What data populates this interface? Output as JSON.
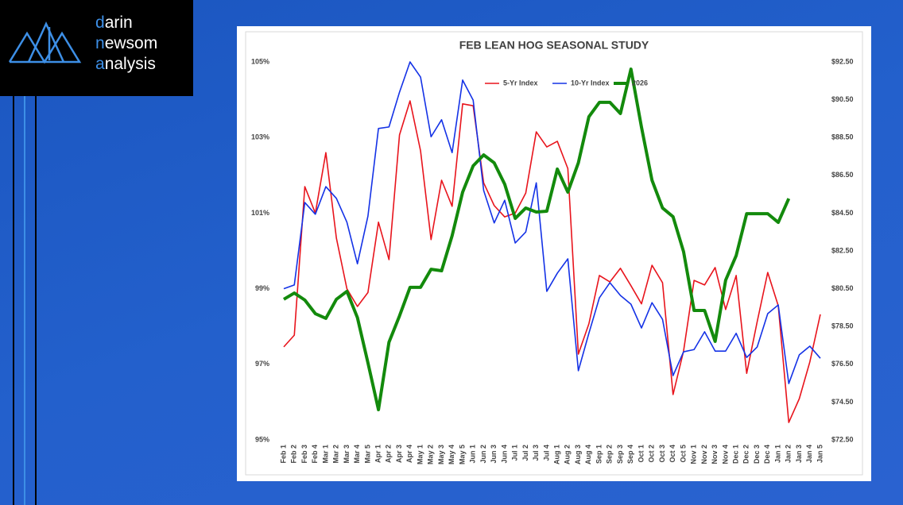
{
  "logo": [
    "darin",
    "newsom",
    "analysis"
  ],
  "chart_data": {
    "type": "line",
    "title": "FEB LEAN HOG SEASONAL STUDY",
    "categories": [
      "Feb 1",
      "Feb 2",
      "Feb 3",
      "Feb 4",
      "Mar 1",
      "Mar 2",
      "Mar 3",
      "Mar 4",
      "Mar 5",
      "Apr 1",
      "Apr 2",
      "Apr 3",
      "Apr 4",
      "May 1",
      "May 2",
      "May 3",
      "May 4",
      "May 5",
      "Jun 1",
      "Jun 2",
      "Jun 3",
      "Jun 4",
      "Jul 1",
      "Jul 2",
      "Jul 3",
      "Jul 4",
      "Aug 1",
      "Aug 2",
      "Aug 3",
      "Aug 4",
      "Sep 1",
      "Sep 2",
      "Sep 3",
      "Sep 4",
      "Oct 1",
      "Oct 2",
      "Oct 3",
      "Oct 4",
      "Oct 5",
      "Nov 1",
      "Nov 2",
      "Nov 3",
      "Nov 4",
      "Dec 1",
      "Dec 2",
      "Dec 3",
      "Dec 4",
      "Jan 1",
      "Jan 2",
      "Jan 3",
      "Jan 4",
      "Jan 5"
    ],
    "series": [
      {
        "name": "5-Yr Index",
        "color": "#e8141c",
        "width": 1.6,
        "values": [
          97.46,
          97.77,
          101.7,
          101.0,
          102.6,
          100.34,
          99.0,
          98.53,
          98.9,
          100.76,
          99.77,
          103.07,
          103.97,
          102.65,
          100.3,
          101.87,
          101.18,
          103.89,
          103.84,
          101.8,
          101.2,
          100.9,
          101.0,
          101.53,
          103.15,
          102.75,
          102.9,
          102.18,
          97.27,
          98.07,
          99.35,
          99.18,
          99.54,
          99.08,
          98.6,
          99.62,
          99.16,
          96.2,
          97.35,
          99.22,
          99.1,
          99.56,
          98.45,
          99.35,
          96.76,
          98.13,
          99.43,
          98.55,
          95.46,
          96.09,
          97.06,
          98.32
        ]
      },
      {
        "name": "10-Yr Index",
        "color": "#1432e6",
        "width": 1.6,
        "values": [
          99.0,
          99.1,
          101.28,
          100.97,
          101.7,
          101.39,
          100.76,
          99.66,
          100.92,
          103.24,
          103.28,
          104.2,
          105.0,
          104.6,
          103.02,
          103.47,
          102.6,
          104.52,
          103.99,
          101.6,
          100.74,
          101.34,
          100.21,
          100.5,
          101.8,
          98.93,
          99.41,
          99.79,
          96.83,
          97.82,
          98.76,
          99.16,
          98.82,
          98.59,
          97.96,
          98.63,
          98.19,
          96.7,
          97.33,
          97.39,
          97.86,
          97.35,
          97.35,
          97.82,
          97.18,
          97.46,
          98.34,
          98.57,
          96.49,
          97.25,
          97.48,
          97.16
        ]
      },
      {
        "name": "2026",
        "color": "#138a0c",
        "width": 4,
        "axis": "y2",
        "values": [
          79.94,
          80.27,
          79.9,
          79.18,
          78.93,
          79.94,
          80.36,
          78.97,
          76.58,
          74.1,
          77.67,
          79.06,
          80.57,
          80.57,
          81.53,
          81.45,
          83.3,
          85.61,
          87.0,
          87.58,
          87.16,
          86.03,
          84.22,
          84.77,
          84.56,
          84.6,
          86.83,
          85.61,
          87.16,
          89.6,
          90.36,
          90.36,
          89.77,
          92.12,
          89.05,
          86.24,
          84.77,
          84.31,
          82.46,
          79.35,
          79.35,
          77.71,
          80.95,
          82.25,
          84.47,
          84.47,
          84.47,
          84.01,
          85.27,
          null,
          null,
          null
        ]
      }
    ],
    "ylim": [
      95,
      105
    ],
    "yticks": [
      {
        "value": 95,
        "label": "95%"
      },
      {
        "value": 97,
        "label": "97%"
      },
      {
        "value": 99,
        "label": "99%"
      },
      {
        "value": 101,
        "label": "101%"
      },
      {
        "value": 103,
        "label": "103%"
      },
      {
        "value": 105,
        "label": "105%"
      }
    ],
    "y2lim": [
      72.5,
      92.5
    ],
    "y2ticks": [
      {
        "value": 72.5,
        "label": "$72.50"
      },
      {
        "value": 74.5,
        "label": "$74.50"
      },
      {
        "value": 76.5,
        "label": "$76.50"
      },
      {
        "value": 78.5,
        "label": "$78.50"
      },
      {
        "value": 80.5,
        "label": "$80.50"
      },
      {
        "value": 82.5,
        "label": "$82.50"
      },
      {
        "value": 84.5,
        "label": "$84.50"
      },
      {
        "value": 86.5,
        "label": "$86.50"
      },
      {
        "value": 88.5,
        "label": "$88.50"
      },
      {
        "value": 90.5,
        "label": "$90.50"
      },
      {
        "value": 92.5,
        "label": "$92.50"
      }
    ],
    "grid": false,
    "legend": "top"
  }
}
